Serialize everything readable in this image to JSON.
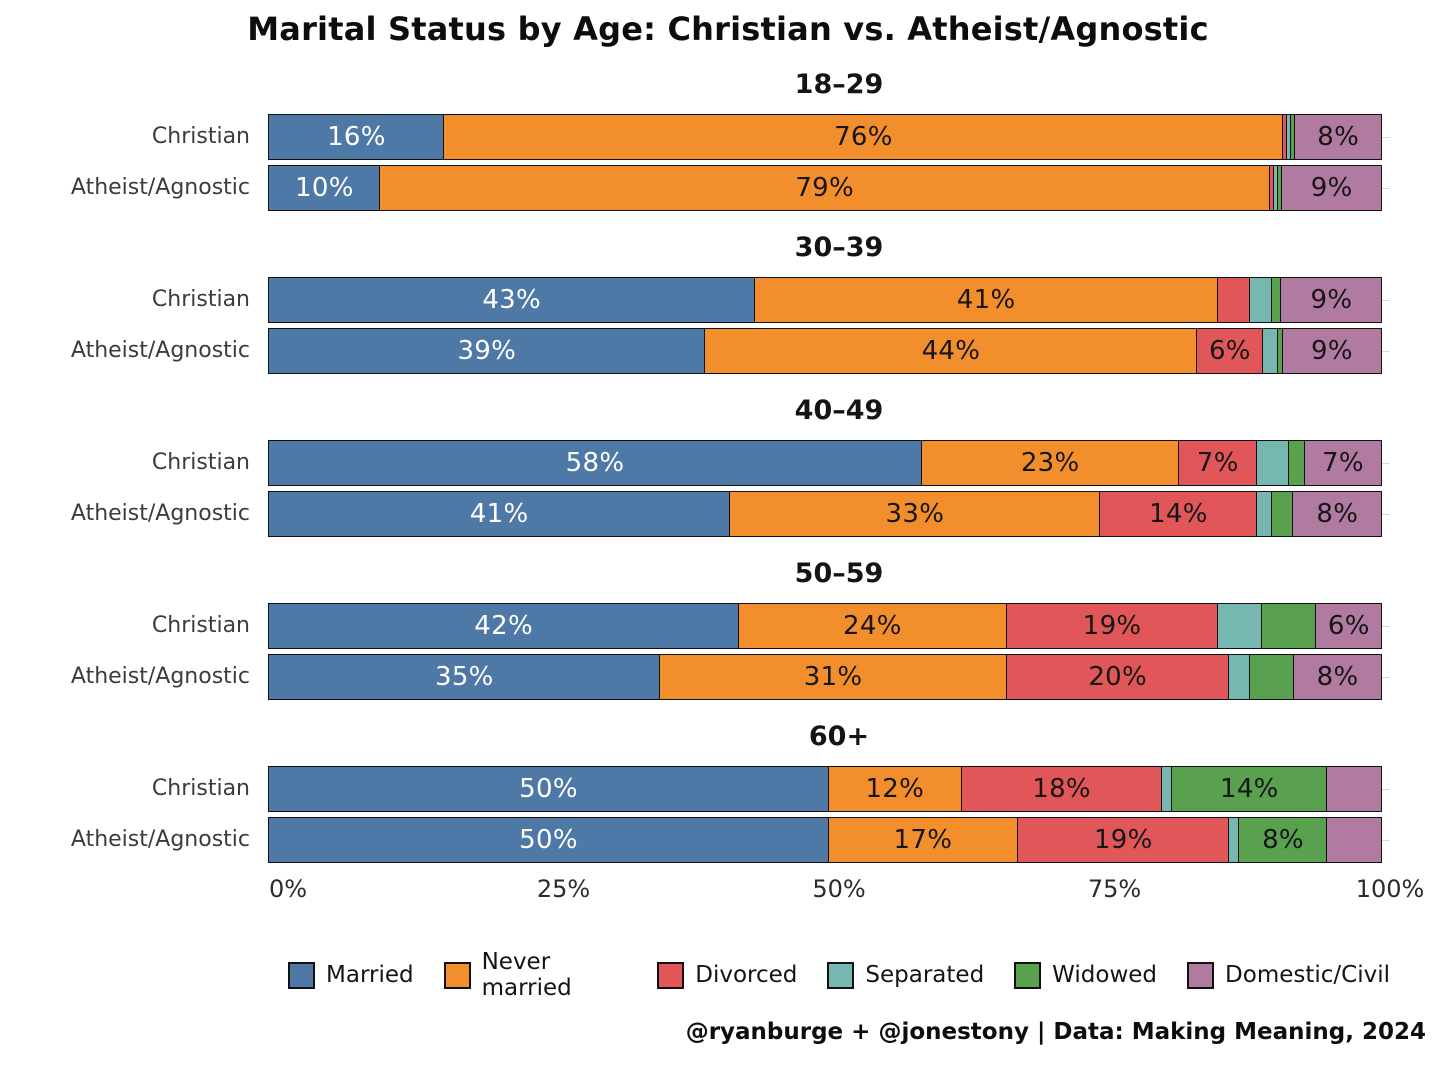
{
  "title": "Marital Status by Age: Christian vs. Atheist/Agnostic",
  "attribution": "@ryanburge + @jonestony | Data: Making Meaning, 2024",
  "x_axis": {
    "ticks": [
      {
        "label": "0%",
        "pos": 0
      },
      {
        "label": "25%",
        "pos": 25
      },
      {
        "label": "50%",
        "pos": 50
      },
      {
        "label": "75%",
        "pos": 75
      },
      {
        "label": "100%",
        "pos": 100
      }
    ]
  },
  "legend": [
    {
      "label": "Married",
      "color": "#4e79a7"
    },
    {
      "label": "Never married",
      "color": "#f28e2b"
    },
    {
      "label": "Divorced",
      "color": "#e15759"
    },
    {
      "label": "Separated",
      "color": "#76b7b2"
    },
    {
      "label": "Widowed",
      "color": "#59a14f"
    },
    {
      "label": "Domestic/Civil",
      "color": "#b07aa1"
    }
  ],
  "label_text_colors": {
    "on_married": "#ffffff",
    "default": "#161616"
  },
  "chart_data": {
    "type": "bar",
    "stacked": true,
    "orientation": "horizontal",
    "unit": "%",
    "x_range": [
      0,
      100
    ],
    "grid": "faint horizontal row lines",
    "legend_position": "bottom",
    "categories": [
      "Married",
      "Never married",
      "Divorced",
      "Separated",
      "Widowed",
      "Domestic/Civil"
    ],
    "groups": [
      {
        "age": "18–29",
        "rows": [
          {
            "label": "Christian",
            "values": [
              16,
              76,
              0.5,
              0.5,
              0.5,
              8
            ],
            "labels": [
              "16%",
              "76%",
              "",
              "",
              "",
              "8%"
            ]
          },
          {
            "label": "Atheist/Agnostic",
            "values": [
              10,
              79,
              0.5,
              0.5,
              0.5,
              9
            ],
            "labels": [
              "10%",
              "79%",
              "",
              "",
              "",
              "9%"
            ]
          }
        ]
      },
      {
        "age": "30–39",
        "rows": [
          {
            "label": "Christian",
            "values": [
              43,
              41,
              3,
              2,
              1,
              9
            ],
            "labels": [
              "43%",
              "41%",
              "",
              "",
              "",
              "9%"
            ]
          },
          {
            "label": "Atheist/Agnostic",
            "values": [
              39,
              44,
              6,
              1.5,
              0.5,
              9
            ],
            "labels": [
              "39%",
              "44%",
              "6%",
              "",
              "",
              "9%"
            ]
          }
        ]
      },
      {
        "age": "40–49",
        "rows": [
          {
            "label": "Christian",
            "values": [
              58,
              23,
              7,
              3,
              1.5,
              7
            ],
            "labels": [
              "58%",
              "23%",
              "7%",
              "",
              "",
              "7%"
            ]
          },
          {
            "label": "Atheist/Agnostic",
            "values": [
              41,
              33,
              14,
              1.5,
              2,
              8
            ],
            "labels": [
              "41%",
              "33%",
              "14%",
              "",
              "",
              "8%"
            ]
          }
        ]
      },
      {
        "age": "50–59",
        "rows": [
          {
            "label": "Christian",
            "values": [
              42,
              24,
              19,
              4,
              5,
              6
            ],
            "labels": [
              "42%",
              "24%",
              "19%",
              "",
              "",
              "6%"
            ]
          },
          {
            "label": "Atheist/Agnostic",
            "values": [
              35,
              31,
              20,
              2,
              4,
              8
            ],
            "labels": [
              "35%",
              "31%",
              "20%",
              "",
              "",
              "8%"
            ]
          }
        ]
      },
      {
        "age": "60+",
        "rows": [
          {
            "label": "Christian",
            "values": [
              50,
              12,
              18,
              1,
              14,
              5
            ],
            "labels": [
              "50%",
              "12%",
              "18%",
              "",
              "14%",
              ""
            ]
          },
          {
            "label": "Atheist/Agnostic",
            "values": [
              50,
              17,
              19,
              1,
              8,
              5
            ],
            "labels": [
              "50%",
              "17%",
              "19%",
              "",
              "8%",
              ""
            ]
          }
        ]
      }
    ]
  }
}
